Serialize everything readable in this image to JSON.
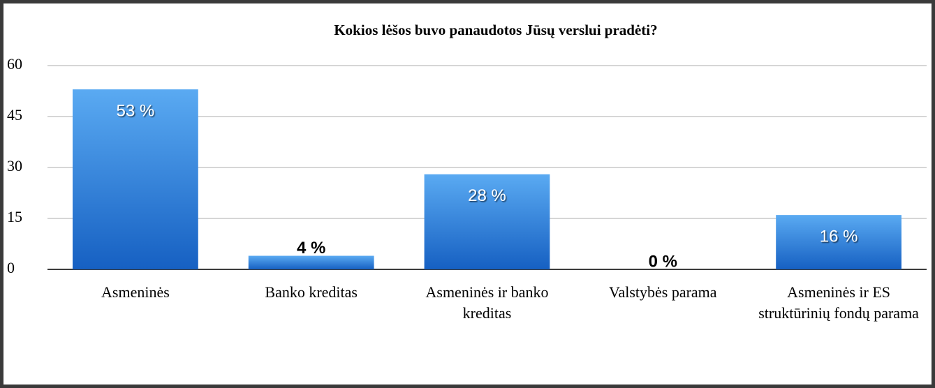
{
  "chart_data": {
    "type": "bar",
    "title": "Kokios lėšos buvo panaudotos Jūsų verslui pradėti?",
    "categories": [
      "Asmeninės",
      "Banko kreditas",
      "Asmeninės ir banko kreditas",
      "Valstybės parama",
      "Asmeninės ir ES struktūrinių fondų parama"
    ],
    "values": [
      53,
      4,
      28,
      0,
      16
    ],
    "value_labels": [
      "53 %",
      "4 %",
      "28 %",
      "0 %",
      "16 %"
    ],
    "color": "#2f7fd8",
    "ylim": [
      0,
      60
    ],
    "yticks": [
      0,
      15,
      30,
      45,
      60
    ],
    "grid": true
  }
}
